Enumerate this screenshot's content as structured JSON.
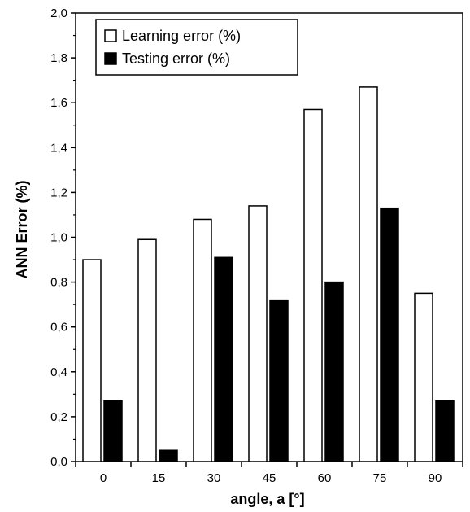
{
  "chart_data": {
    "type": "bar",
    "categories": [
      "0",
      "15",
      "30",
      "45",
      "60",
      "75",
      "90"
    ],
    "series": [
      {
        "name": "Learning error (%)",
        "values": [
          0.9,
          0.99,
          1.08,
          1.14,
          1.57,
          1.67,
          0.75
        ],
        "fill": "#ffffff"
      },
      {
        "name": "Testing error (%)",
        "values": [
          0.27,
          0.05,
          0.91,
          0.72,
          0.8,
          1.13,
          0.27
        ],
        "fill": "#000000"
      }
    ],
    "xlabel": "angle, a [°]",
    "ylabel": "ANN Error (%)",
    "ylim": [
      0,
      2.0
    ],
    "yticks": [
      "0,0",
      "0,2",
      "0,4",
      "0,6",
      "0,8",
      "1,0",
      "1,2",
      "1,4",
      "1,6",
      "1,8",
      "2,0"
    ],
    "grid": false,
    "legend_position": "top-left"
  }
}
